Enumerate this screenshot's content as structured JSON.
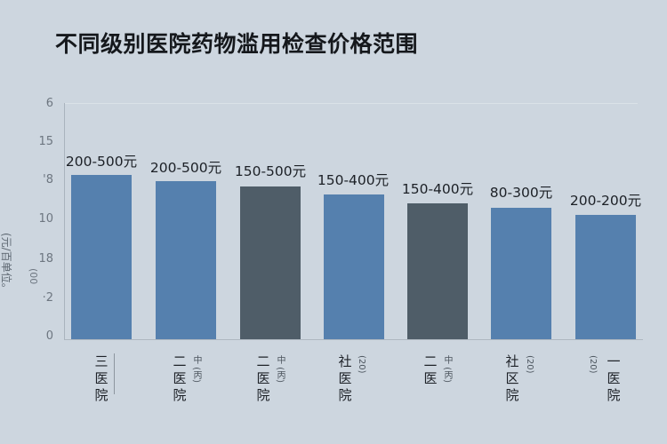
{
  "chart_data": {
    "type": "bar",
    "title": "不同级别医院药物滥用检查价格范围",
    "xlabel": "",
    "ylabel": "(元/百单位。",
    "ylabel_sub": "(00",
    "yticks": [
      "0",
      "·2",
      "18",
      "10",
      "'8",
      "15",
      "6"
    ],
    "categories": [
      "三医院",
      "二甲医院",
      "二甲医院",
      "社医院",
      "二甲医",
      "社区医院",
      "医院"
    ],
    "category_lines": [
      [
        "三",
        "医",
        "院"
      ],
      [
        "二",
        "医",
        "院"
      ],
      [
        "二",
        "医",
        "院"
      ],
      [
        "社",
        "医",
        "院"
      ],
      [
        "二",
        "医",
        ""
      ],
      [
        "社",
        "区",
        "院"
      ],
      [
        "一",
        "医",
        "院"
      ]
    ],
    "category_side": [
      "",
      "中 (丙)",
      "中 (丙)",
      "(20)",
      "中 (丙)",
      "(20)",
      "(20)"
    ],
    "values": [
      185,
      178,
      172,
      163,
      153,
      148,
      140
    ],
    "bar_labels": [
      "200-500元",
      "200-500元",
      "150-500元",
      "150-400元",
      "150-400元",
      "80-300元",
      "200-200元"
    ],
    "bar_colors": [
      "#5580ae",
      "#5580ae",
      "#4f5d68",
      "#5580ae",
      "#4f5d68",
      "#5580ae",
      "#5580ae"
    ],
    "ylim": [
      0,
      266
    ],
    "grid": false,
    "legend": "none"
  },
  "colors": {
    "background": "#cdd6df",
    "bar_blue": "#5580ae",
    "bar_slate": "#4f5d68",
    "axis": "#a9b3bd"
  }
}
